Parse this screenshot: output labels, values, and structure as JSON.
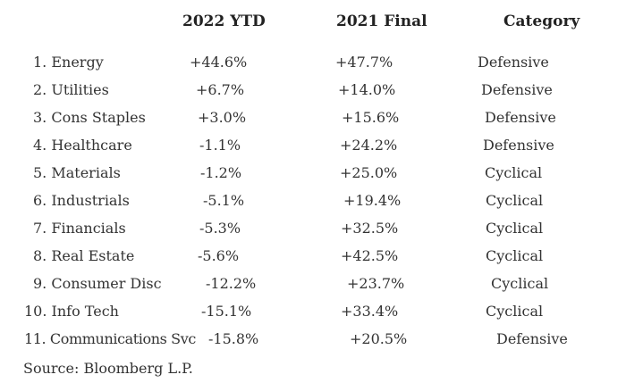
{
  "headers": {
    "ytd": "2022 YTD",
    "final": "2021 Final",
    "category": "Category"
  },
  "rows": [
    {
      "sector": "1. Energy",
      "ytd": "+44.6%",
      "final": "+47.7%",
      "category": "Defensive"
    },
    {
      "sector": "2. Utilities",
      "ytd": "+6.7%",
      "final": "+14.0%",
      "category": "Defensive"
    },
    {
      "sector": "3. Cons Staples",
      "ytd": "+3.0%",
      "final": "+15.6%",
      "category": "Defensive"
    },
    {
      "sector": "4. Healthcare",
      "ytd": "-1.1%",
      "final": "+24.2%",
      "category": "Defensive"
    },
    {
      "sector": "5. Materials",
      "ytd": "-1.2%",
      "final": "+25.0%",
      "category": "Cyclical"
    },
    {
      "sector": "6. Industrials",
      "ytd": "-5.1%",
      "final": "+19.4%",
      "category": "Cyclical"
    },
    {
      "sector": "7. Financials",
      "ytd": "-5.3%",
      "final": "+32.5%",
      "category": "Cyclical"
    },
    {
      "sector": "8. Real Estate",
      "ytd": "-5.6%",
      "final": "+42.5%",
      "category": "Cyclical"
    },
    {
      "sector": "9. Consumer Disc",
      "ytd": "-12.2%",
      "final": "+23.7%",
      "category": "Cyclical"
    },
    {
      "sector": "10. Info Tech",
      "ytd": "-15.1%",
      "final": "+33.4%",
      "category": "Cyclical"
    },
    {
      "sector": "11. Communications Svc",
      "ytd": "-15.8%",
      "final": "+20.5%",
      "category": "Defensive"
    }
  ],
  "source": "Source: Bloomberg L.P."
}
